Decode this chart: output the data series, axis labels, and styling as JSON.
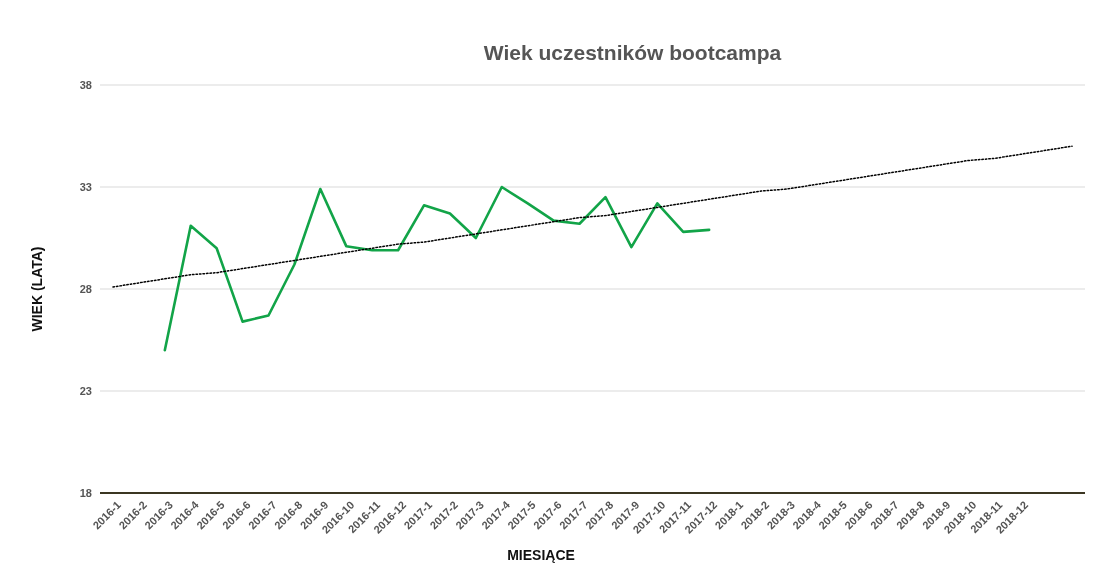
{
  "chart_data": {
    "type": "line",
    "title": "Wiek uczestników bootcampa",
    "xlabel": "MIESIĄCE",
    "ylabel": "WIEK (LATA)",
    "categories": [
      "2016-1",
      "2016-2",
      "2016-3",
      "2016-4",
      "2016-5",
      "2016-6",
      "2016-7",
      "2016-8",
      "2016-9",
      "2016-10",
      "2016-11",
      "2016-12",
      "2017-1",
      "2017-2",
      "2017-3",
      "2017-4",
      "2017-5",
      "2017-6",
      "2017-7",
      "2017-8",
      "2017-9",
      "2017-10",
      "2017-11",
      "2017-12",
      "2018-1",
      "2018-2",
      "2018-3",
      "2018-4",
      "2018-5",
      "2018-6",
      "2018-7",
      "2018-8",
      "2018-9",
      "2018-10",
      "2018-11",
      "2018-12",
      null,
      null
    ],
    "series": [
      {
        "color": "#12a448",
        "line_style": "solid",
        "values": [
          null,
          null,
          25.0,
          31.1,
          30.0,
          26.4,
          26.7,
          29.2,
          32.9,
          30.1,
          29.9,
          29.9,
          32.1,
          31.7,
          30.5,
          33.0,
          32.2,
          31.35,
          31.2,
          32.5,
          30.05,
          32.2,
          30.8,
          30.9,
          null,
          null,
          null,
          null,
          null,
          null,
          null,
          null,
          null,
          null,
          null,
          null,
          null,
          null
        ]
      },
      {
        "type": "line",
        "color": "#000000",
        "line_style": "dotted",
        "values": [
          28.1,
          28.3,
          28.5,
          28.7,
          28.8,
          29.0,
          29.2,
          29.4,
          29.6,
          29.8,
          30.0,
          30.2,
          30.3,
          30.5,
          30.7,
          30.9,
          31.1,
          31.3,
          31.5,
          31.6,
          31.8,
          32.0,
          32.2,
          32.4,
          32.6,
          32.8,
          32.9,
          33.1,
          33.3,
          33.5,
          33.7,
          33.9,
          34.1,
          34.3,
          34.4,
          34.6,
          34.8,
          35.0
        ]
      }
    ],
    "ylim": [
      18,
      38
    ],
    "yticks": [
      18,
      23,
      28,
      33,
      38
    ],
    "grid": "y",
    "marker": "none"
  }
}
